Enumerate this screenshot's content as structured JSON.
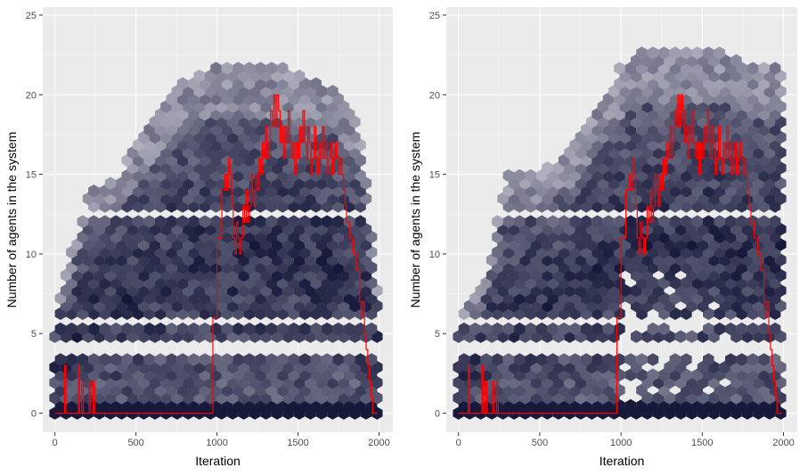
{
  "colors": {
    "panel_bg": "#EBEBEB",
    "grid_major": "#FFFFFF",
    "tick_text": "#4D4D4D",
    "tick_mark": "#333333",
    "trace_line": "#FF0000",
    "hex_light": "#BDBDC9",
    "hex_dark": "#0E1033"
  },
  "chart_data": [
    {
      "type": "hexbin",
      "xlabel": "Iteration",
      "ylabel": "Number of agents in the system",
      "xlim": [
        -75,
        2085
      ],
      "ylim": [
        -1.2,
        25.5
      ],
      "x_ticks": [
        0,
        500,
        1000,
        1500,
        2000
      ],
      "x_tick_labels": [
        "0",
        "500",
        "1000",
        "1500",
        "2000"
      ],
      "y_ticks": [
        0,
        5,
        10,
        15,
        20,
        25
      ],
      "y_tick_labels": [
        "0",
        "5",
        "10",
        "15",
        "20",
        "25"
      ],
      "grid": true,
      "density_envelope": [
        {
          "x": 0,
          "y": 6.5
        },
        {
          "x": 100,
          "y": 10
        },
        {
          "x": 200,
          "y": 14
        },
        {
          "x": 400,
          "y": 15
        },
        {
          "x": 600,
          "y": 19
        },
        {
          "x": 800,
          "y": 21
        },
        {
          "x": 1000,
          "y": 22
        },
        {
          "x": 1200,
          "y": 22
        },
        {
          "x": 1400,
          "y": 22
        },
        {
          "x": 1600,
          "y": 21
        },
        {
          "x": 1800,
          "y": 20
        },
        {
          "x": 1900,
          "y": 17
        },
        {
          "x": 2000,
          "y": 7
        }
      ],
      "empty_y_bands": [
        [
          3.5,
          4.5
        ],
        [
          5.5,
          6.0
        ],
        [
          12.2,
          12.8
        ],
        [
          13.5,
          13.9
        ]
      ],
      "trace": [
        {
          "x": 0,
          "y": 0
        },
        {
          "x": 55,
          "y": 0
        },
        {
          "x": 60,
          "y": 3
        },
        {
          "x": 68,
          "y": 0
        },
        {
          "x": 140,
          "y": 0
        },
        {
          "x": 145,
          "y": 3
        },
        {
          "x": 152,
          "y": 0
        },
        {
          "x": 165,
          "y": 2
        },
        {
          "x": 175,
          "y": 0
        },
        {
          "x": 205,
          "y": 0
        },
        {
          "x": 210,
          "y": 2
        },
        {
          "x": 220,
          "y": 0
        },
        {
          "x": 235,
          "y": 2
        },
        {
          "x": 245,
          "y": 0
        },
        {
          "x": 950,
          "y": 0
        },
        {
          "x": 975,
          "y": 6
        },
        {
          "x": 1000,
          "y": 11
        },
        {
          "x": 1030,
          "y": 14
        },
        {
          "x": 1050,
          "y": 15
        },
        {
          "x": 1060,
          "y": 14
        },
        {
          "x": 1070,
          "y": 16
        },
        {
          "x": 1080,
          "y": 15
        },
        {
          "x": 1090,
          "y": 13
        },
        {
          "x": 1100,
          "y": 11
        },
        {
          "x": 1110,
          "y": 10
        },
        {
          "x": 1120,
          "y": 12
        },
        {
          "x": 1130,
          "y": 11
        },
        {
          "x": 1140,
          "y": 10
        },
        {
          "x": 1150,
          "y": 11
        },
        {
          "x": 1160,
          "y": 13
        },
        {
          "x": 1170,
          "y": 12
        },
        {
          "x": 1180,
          "y": 14
        },
        {
          "x": 1190,
          "y": 12
        },
        {
          "x": 1200,
          "y": 13
        },
        {
          "x": 1210,
          "y": 15
        },
        {
          "x": 1220,
          "y": 14
        },
        {
          "x": 1230,
          "y": 13
        },
        {
          "x": 1240,
          "y": 15
        },
        {
          "x": 1250,
          "y": 14
        },
        {
          "x": 1260,
          "y": 16
        },
        {
          "x": 1270,
          "y": 15
        },
        {
          "x": 1280,
          "y": 17
        },
        {
          "x": 1290,
          "y": 16
        },
        {
          "x": 1300,
          "y": 18
        },
        {
          "x": 1310,
          "y": 16
        },
        {
          "x": 1320,
          "y": 17
        },
        {
          "x": 1330,
          "y": 19
        },
        {
          "x": 1340,
          "y": 18
        },
        {
          "x": 1350,
          "y": 20
        },
        {
          "x": 1360,
          "y": 18
        },
        {
          "x": 1370,
          "y": 20
        },
        {
          "x": 1380,
          "y": 19
        },
        {
          "x": 1390,
          "y": 17
        },
        {
          "x": 1400,
          "y": 18
        },
        {
          "x": 1410,
          "y": 16
        },
        {
          "x": 1420,
          "y": 18
        },
        {
          "x": 1430,
          "y": 17
        },
        {
          "x": 1440,
          "y": 19
        },
        {
          "x": 1450,
          "y": 17
        },
        {
          "x": 1460,
          "y": 16
        },
        {
          "x": 1470,
          "y": 17
        },
        {
          "x": 1480,
          "y": 15
        },
        {
          "x": 1490,
          "y": 17
        },
        {
          "x": 1500,
          "y": 16
        },
        {
          "x": 1510,
          "y": 18
        },
        {
          "x": 1520,
          "y": 17
        },
        {
          "x": 1530,
          "y": 19
        },
        {
          "x": 1540,
          "y": 17
        },
        {
          "x": 1550,
          "y": 16
        },
        {
          "x": 1560,
          "y": 18
        },
        {
          "x": 1570,
          "y": 17
        },
        {
          "x": 1580,
          "y": 15
        },
        {
          "x": 1590,
          "y": 16
        },
        {
          "x": 1600,
          "y": 18
        },
        {
          "x": 1610,
          "y": 16
        },
        {
          "x": 1620,
          "y": 15
        },
        {
          "x": 1630,
          "y": 17
        },
        {
          "x": 1640,
          "y": 16
        },
        {
          "x": 1650,
          "y": 18
        },
        {
          "x": 1660,
          "y": 16
        },
        {
          "x": 1670,
          "y": 17
        },
        {
          "x": 1680,
          "y": 15
        },
        {
          "x": 1690,
          "y": 16
        },
        {
          "x": 1700,
          "y": 17
        },
        {
          "x": 1710,
          "y": 15
        },
        {
          "x": 1720,
          "y": 16
        },
        {
          "x": 1730,
          "y": 17
        },
        {
          "x": 1740,
          "y": 16
        },
        {
          "x": 1750,
          "y": 15
        },
        {
          "x": 1760,
          "y": 16
        },
        {
          "x": 1770,
          "y": 15
        },
        {
          "x": 1780,
          "y": 14
        },
        {
          "x": 1790,
          "y": 13
        },
        {
          "x": 1800,
          "y": 12
        },
        {
          "x": 1820,
          "y": 11
        },
        {
          "x": 1840,
          "y": 10
        },
        {
          "x": 1860,
          "y": 9
        },
        {
          "x": 1880,
          "y": 7
        },
        {
          "x": 1890,
          "y": 6
        },
        {
          "x": 1900,
          "y": 7
        },
        {
          "x": 1910,
          "y": 5
        },
        {
          "x": 1920,
          "y": 4
        },
        {
          "x": 1930,
          "y": 3
        },
        {
          "x": 1940,
          "y": 2
        },
        {
          "x": 1950,
          "y": 1
        },
        {
          "x": 1960,
          "y": 0
        },
        {
          "x": 1990,
          "y": 0
        }
      ]
    },
    {
      "type": "hexbin",
      "xlabel": "Iteration",
      "ylabel": "Number of agents in the system",
      "xlim": [
        -75,
        2085
      ],
      "ylim": [
        -1.2,
        25.5
      ],
      "x_ticks": [
        0,
        500,
        1000,
        1500,
        2000
      ],
      "x_tick_labels": [
        "0",
        "500",
        "1000",
        "1500",
        "2000"
      ],
      "y_ticks": [
        0,
        5,
        10,
        15,
        20,
        25
      ],
      "y_tick_labels": [
        "0",
        "5",
        "10",
        "15",
        "20",
        "25"
      ],
      "grid": true,
      "density_envelope": [
        {
          "x": 0,
          "y": 6.5
        },
        {
          "x": 150,
          "y": 8
        },
        {
          "x": 300,
          "y": 15
        },
        {
          "x": 500,
          "y": 15
        },
        {
          "x": 700,
          "y": 17
        },
        {
          "x": 900,
          "y": 20
        },
        {
          "x": 1000,
          "y": 22
        },
        {
          "x": 1200,
          "y": 23
        },
        {
          "x": 1400,
          "y": 23
        },
        {
          "x": 1600,
          "y": 23
        },
        {
          "x": 1800,
          "y": 22
        },
        {
          "x": 1900,
          "y": 22
        },
        {
          "x": 2000,
          "y": 22
        }
      ],
      "empty_y_bands": [
        [
          3.5,
          4.5
        ],
        [
          5.5,
          6.0
        ],
        [
          12.2,
          12.8
        ],
        [
          13.5,
          13.9
        ]
      ],
      "trace": [
        {
          "x": 0,
          "y": 0
        },
        {
          "x": 55,
          "y": 0
        },
        {
          "x": 60,
          "y": 3
        },
        {
          "x": 68,
          "y": 0
        },
        {
          "x": 140,
          "y": 0
        },
        {
          "x": 145,
          "y": 3
        },
        {
          "x": 152,
          "y": 0
        },
        {
          "x": 165,
          "y": 2
        },
        {
          "x": 175,
          "y": 0
        },
        {
          "x": 205,
          "y": 0
        },
        {
          "x": 210,
          "y": 2
        },
        {
          "x": 220,
          "y": 0
        },
        {
          "x": 235,
          "y": 2
        },
        {
          "x": 245,
          "y": 0
        },
        {
          "x": 950,
          "y": 0
        },
        {
          "x": 975,
          "y": 6
        },
        {
          "x": 1000,
          "y": 11
        },
        {
          "x": 1030,
          "y": 14
        },
        {
          "x": 1050,
          "y": 15
        },
        {
          "x": 1060,
          "y": 14
        },
        {
          "x": 1070,
          "y": 16
        },
        {
          "x": 1080,
          "y": 15
        },
        {
          "x": 1090,
          "y": 13
        },
        {
          "x": 1100,
          "y": 11
        },
        {
          "x": 1110,
          "y": 10
        },
        {
          "x": 1120,
          "y": 12
        },
        {
          "x": 1130,
          "y": 11
        },
        {
          "x": 1140,
          "y": 10
        },
        {
          "x": 1150,
          "y": 11
        },
        {
          "x": 1160,
          "y": 13
        },
        {
          "x": 1170,
          "y": 12
        },
        {
          "x": 1180,
          "y": 14
        },
        {
          "x": 1190,
          "y": 12
        },
        {
          "x": 1200,
          "y": 13
        },
        {
          "x": 1210,
          "y": 15
        },
        {
          "x": 1220,
          "y": 14
        },
        {
          "x": 1230,
          "y": 13
        },
        {
          "x": 1240,
          "y": 15
        },
        {
          "x": 1250,
          "y": 14
        },
        {
          "x": 1260,
          "y": 16
        },
        {
          "x": 1270,
          "y": 15
        },
        {
          "x": 1280,
          "y": 17
        },
        {
          "x": 1290,
          "y": 16
        },
        {
          "x": 1300,
          "y": 18
        },
        {
          "x": 1310,
          "y": 16
        },
        {
          "x": 1320,
          "y": 17
        },
        {
          "x": 1330,
          "y": 19
        },
        {
          "x": 1340,
          "y": 18
        },
        {
          "x": 1350,
          "y": 20
        },
        {
          "x": 1360,
          "y": 18
        },
        {
          "x": 1370,
          "y": 20
        },
        {
          "x": 1380,
          "y": 19
        },
        {
          "x": 1390,
          "y": 17
        },
        {
          "x": 1400,
          "y": 18
        },
        {
          "x": 1410,
          "y": 16
        },
        {
          "x": 1420,
          "y": 18
        },
        {
          "x": 1430,
          "y": 17
        },
        {
          "x": 1440,
          "y": 19
        },
        {
          "x": 1450,
          "y": 17
        },
        {
          "x": 1460,
          "y": 16
        },
        {
          "x": 1470,
          "y": 17
        },
        {
          "x": 1480,
          "y": 15
        },
        {
          "x": 1490,
          "y": 17
        },
        {
          "x": 1500,
          "y": 16
        },
        {
          "x": 1510,
          "y": 18
        },
        {
          "x": 1520,
          "y": 17
        },
        {
          "x": 1530,
          "y": 19
        },
        {
          "x": 1540,
          "y": 17
        },
        {
          "x": 1550,
          "y": 16
        },
        {
          "x": 1560,
          "y": 18
        },
        {
          "x": 1570,
          "y": 17
        },
        {
          "x": 1580,
          "y": 15
        },
        {
          "x": 1590,
          "y": 16
        },
        {
          "x": 1600,
          "y": 18
        },
        {
          "x": 1610,
          "y": 16
        },
        {
          "x": 1620,
          "y": 15
        },
        {
          "x": 1630,
          "y": 17
        },
        {
          "x": 1640,
          "y": 16
        },
        {
          "x": 1650,
          "y": 18
        },
        {
          "x": 1660,
          "y": 16
        },
        {
          "x": 1670,
          "y": 17
        },
        {
          "x": 1680,
          "y": 15
        },
        {
          "x": 1690,
          "y": 16
        },
        {
          "x": 1700,
          "y": 17
        },
        {
          "x": 1710,
          "y": 15
        },
        {
          "x": 1720,
          "y": 16
        },
        {
          "x": 1730,
          "y": 17
        },
        {
          "x": 1740,
          "y": 16
        },
        {
          "x": 1750,
          "y": 15
        },
        {
          "x": 1760,
          "y": 16
        },
        {
          "x": 1770,
          "y": 15
        },
        {
          "x": 1780,
          "y": 14
        },
        {
          "x": 1790,
          "y": 13
        },
        {
          "x": 1800,
          "y": 12
        },
        {
          "x": 1820,
          "y": 11
        },
        {
          "x": 1840,
          "y": 10
        },
        {
          "x": 1860,
          "y": 9
        },
        {
          "x": 1880,
          "y": 7
        },
        {
          "x": 1890,
          "y": 6
        },
        {
          "x": 1900,
          "y": 7
        },
        {
          "x": 1910,
          "y": 5
        },
        {
          "x": 1920,
          "y": 4
        },
        {
          "x": 1930,
          "y": 3
        },
        {
          "x": 1940,
          "y": 2
        },
        {
          "x": 1950,
          "y": 1
        },
        {
          "x": 1960,
          "y": 0
        },
        {
          "x": 1990,
          "y": 0
        }
      ]
    }
  ]
}
